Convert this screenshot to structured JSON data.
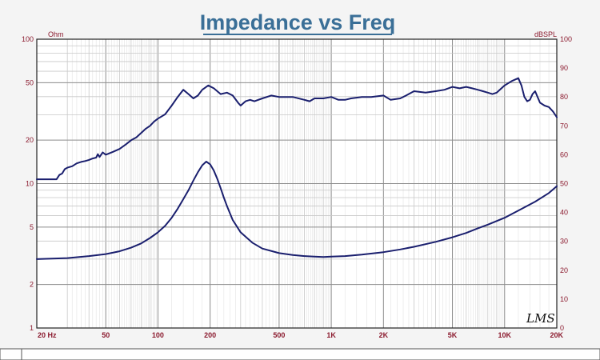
{
  "chart_data": {
    "type": "line",
    "title": "Impedance vs Freq",
    "x_scale": "log",
    "xlim": [
      20,
      20000
    ],
    "x_ticks": [
      {
        "value": 20,
        "label": "20  Hz"
      },
      {
        "value": 50,
        "label": "50"
      },
      {
        "value": 100,
        "label": "100"
      },
      {
        "value": 200,
        "label": "200"
      },
      {
        "value": 500,
        "label": "500"
      },
      {
        "value": 1000,
        "label": "1K"
      },
      {
        "value": 2000,
        "label": "2K"
      },
      {
        "value": 5000,
        "label": "5K"
      },
      {
        "value": 10000,
        "label": "10K"
      },
      {
        "value": 20000,
        "label": "20K"
      }
    ],
    "y_left": {
      "unit": "Ohm",
      "scale": "log",
      "lim": [
        1,
        100
      ],
      "ticks": [
        {
          "value": 1,
          "label": "1"
        },
        {
          "value": 2,
          "label": "2"
        },
        {
          "value": 5,
          "label": "5"
        },
        {
          "value": 10,
          "label": "10"
        },
        {
          "value": 20,
          "label": "20"
        },
        {
          "value": 50,
          "label": "50"
        },
        {
          "value": 100,
          "label": "100"
        }
      ]
    },
    "y_right": {
      "unit": "dBSPL",
      "scale": "linear",
      "lim": [
        0,
        100
      ],
      "ticks": [
        0,
        10,
        20,
        30,
        40,
        50,
        60,
        70,
        80,
        90,
        100
      ]
    },
    "grid": true,
    "series": [
      {
        "axis": "left",
        "color": "#1a1f6e",
        "points": [
          [
            20,
            3.0
          ],
          [
            30,
            3.05
          ],
          [
            40,
            3.15
          ],
          [
            50,
            3.25
          ],
          [
            60,
            3.4
          ],
          [
            70,
            3.6
          ],
          [
            80,
            3.85
          ],
          [
            90,
            4.2
          ],
          [
            100,
            4.6
          ],
          [
            110,
            5.1
          ],
          [
            120,
            5.8
          ],
          [
            130,
            6.7
          ],
          [
            140,
            7.8
          ],
          [
            150,
            9.0
          ],
          [
            160,
            10.5
          ],
          [
            170,
            12.0
          ],
          [
            180,
            13.4
          ],
          [
            190,
            14.2
          ],
          [
            200,
            13.6
          ],
          [
            210,
            12.3
          ],
          [
            220,
            10.8
          ],
          [
            230,
            9.3
          ],
          [
            240,
            8.0
          ],
          [
            250,
            7.0
          ],
          [
            270,
            5.6
          ],
          [
            300,
            4.6
          ],
          [
            350,
            3.9
          ],
          [
            400,
            3.55
          ],
          [
            500,
            3.3
          ],
          [
            600,
            3.2
          ],
          [
            700,
            3.15
          ],
          [
            800,
            3.12
          ],
          [
            900,
            3.1
          ],
          [
            1000,
            3.12
          ],
          [
            1200,
            3.15
          ],
          [
            1500,
            3.22
          ],
          [
            2000,
            3.35
          ],
          [
            2500,
            3.5
          ],
          [
            3000,
            3.65
          ],
          [
            4000,
            3.95
          ],
          [
            5000,
            4.25
          ],
          [
            6000,
            4.55
          ],
          [
            7000,
            4.9
          ],
          [
            8000,
            5.2
          ],
          [
            10000,
            5.8
          ],
          [
            12000,
            6.5
          ],
          [
            15000,
            7.5
          ],
          [
            18000,
            8.6
          ],
          [
            20000,
            9.6
          ]
        ]
      },
      {
        "axis": "right",
        "color": "#1a1f6e",
        "points": [
          [
            20,
            51.5
          ],
          [
            26,
            51.5
          ],
          [
            27,
            53.0
          ],
          [
            28,
            53.5
          ],
          [
            29,
            55.0
          ],
          [
            30,
            55.5
          ],
          [
            32,
            56.0
          ],
          [
            34,
            57.0
          ],
          [
            36,
            57.5
          ],
          [
            38,
            57.8
          ],
          [
            40,
            58.2
          ],
          [
            42,
            58.7
          ],
          [
            44,
            59.0
          ],
          [
            45,
            60.2
          ],
          [
            46,
            59.2
          ],
          [
            48,
            60.8
          ],
          [
            50,
            60.0
          ],
          [
            55,
            61.0
          ],
          [
            60,
            62.0
          ],
          [
            65,
            63.5
          ],
          [
            70,
            65.0
          ],
          [
            75,
            66.0
          ],
          [
            80,
            67.5
          ],
          [
            85,
            69.0
          ],
          [
            90,
            70.0
          ],
          [
            95,
            71.5
          ],
          [
            100,
            72.5
          ],
          [
            110,
            74.0
          ],
          [
            120,
            77.0
          ],
          [
            130,
            80.0
          ],
          [
            140,
            82.5
          ],
          [
            150,
            81.0
          ],
          [
            160,
            79.5
          ],
          [
            170,
            80.5
          ],
          [
            180,
            82.5
          ],
          [
            195,
            84.0
          ],
          [
            210,
            83.0
          ],
          [
            230,
            81.0
          ],
          [
            250,
            81.5
          ],
          [
            270,
            80.5
          ],
          [
            290,
            78.0
          ],
          [
            300,
            77.0
          ],
          [
            320,
            78.5
          ],
          [
            340,
            79.0
          ],
          [
            360,
            78.5
          ],
          [
            400,
            79.5
          ],
          [
            450,
            80.5
          ],
          [
            500,
            80.0
          ],
          [
            600,
            80.0
          ],
          [
            700,
            79.0
          ],
          [
            750,
            78.5
          ],
          [
            800,
            79.5
          ],
          [
            900,
            79.5
          ],
          [
            1000,
            80.0
          ],
          [
            1100,
            79.0
          ],
          [
            1200,
            79.0
          ],
          [
            1300,
            79.5
          ],
          [
            1500,
            80.0
          ],
          [
            1700,
            80.0
          ],
          [
            2000,
            80.5
          ],
          [
            2200,
            79.0
          ],
          [
            2500,
            79.5
          ],
          [
            2700,
            80.5
          ],
          [
            3000,
            82.0
          ],
          [
            3500,
            81.5
          ],
          [
            4000,
            82.0
          ],
          [
            4500,
            82.5
          ],
          [
            5000,
            83.5
          ],
          [
            5500,
            83.0
          ],
          [
            6000,
            83.5
          ],
          [
            6500,
            83.0
          ],
          [
            7000,
            82.5
          ],
          [
            7500,
            82.0
          ],
          [
            8000,
            81.5
          ],
          [
            8500,
            81.0
          ],
          [
            9000,
            81.5
          ],
          [
            10000,
            84.0
          ],
          [
            11000,
            85.5
          ],
          [
            12000,
            86.5
          ],
          [
            12500,
            84.0
          ],
          [
            13000,
            80.0
          ],
          [
            13500,
            78.5
          ],
          [
            14000,
            79.0
          ],
          [
            14500,
            81.0
          ],
          [
            15000,
            82.0
          ],
          [
            16000,
            78.0
          ],
          [
            17000,
            77.0
          ],
          [
            18000,
            76.5
          ],
          [
            19000,
            75.0
          ],
          [
            20000,
            73.0
          ]
        ]
      }
    ]
  },
  "brand_text": "LMS"
}
